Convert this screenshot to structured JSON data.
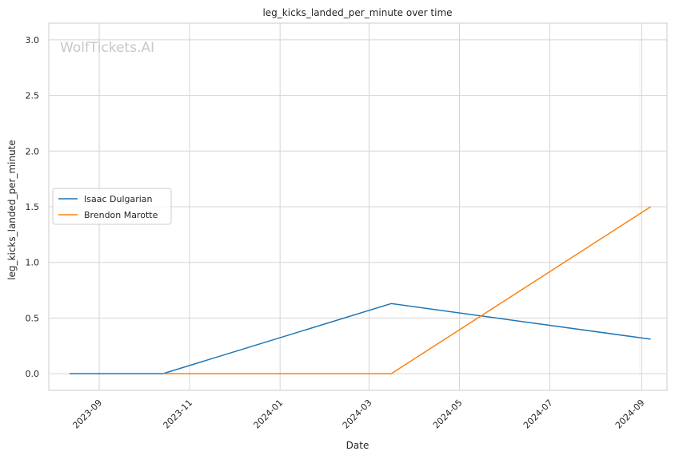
{
  "chart_data": {
    "type": "line",
    "title": "leg_kicks_landed_per_minute over time",
    "xlabel": "Date",
    "ylabel": "leg_kicks_landed_per_minute",
    "watermark": "WolfTickets.AI",
    "x_ticks": [
      "2023-09",
      "2023-11",
      "2024-01",
      "2024-03",
      "2024-05",
      "2024-07",
      "2024-09"
    ],
    "y_ticks": [
      "0.0",
      "0.5",
      "1.0",
      "1.5",
      "2.0",
      "2.5",
      "3.0"
    ],
    "xlim": [
      "2023-07-29",
      "2024-09-18"
    ],
    "ylim": [
      -0.15,
      3.15
    ],
    "grid": true,
    "legend_position": "center-left",
    "series": [
      {
        "name": "Isaac Dulgarian",
        "color": "#1f77b4",
        "points": [
          {
            "x": "2023-08-12",
            "y": 0.0
          },
          {
            "x": "2023-10-14",
            "y": 0.0
          },
          {
            "x": "2024-03-16",
            "y": 0.63
          },
          {
            "x": "2024-09-07",
            "y": 0.31
          }
        ]
      },
      {
        "name": "Brendon Marotte",
        "color": "#ff7f0e",
        "points": [
          {
            "x": "2023-10-14",
            "y": 0.0
          },
          {
            "x": "2024-03-16",
            "y": 0.0
          },
          {
            "x": "2024-09-07",
            "y": 1.5
          }
        ]
      }
    ]
  }
}
